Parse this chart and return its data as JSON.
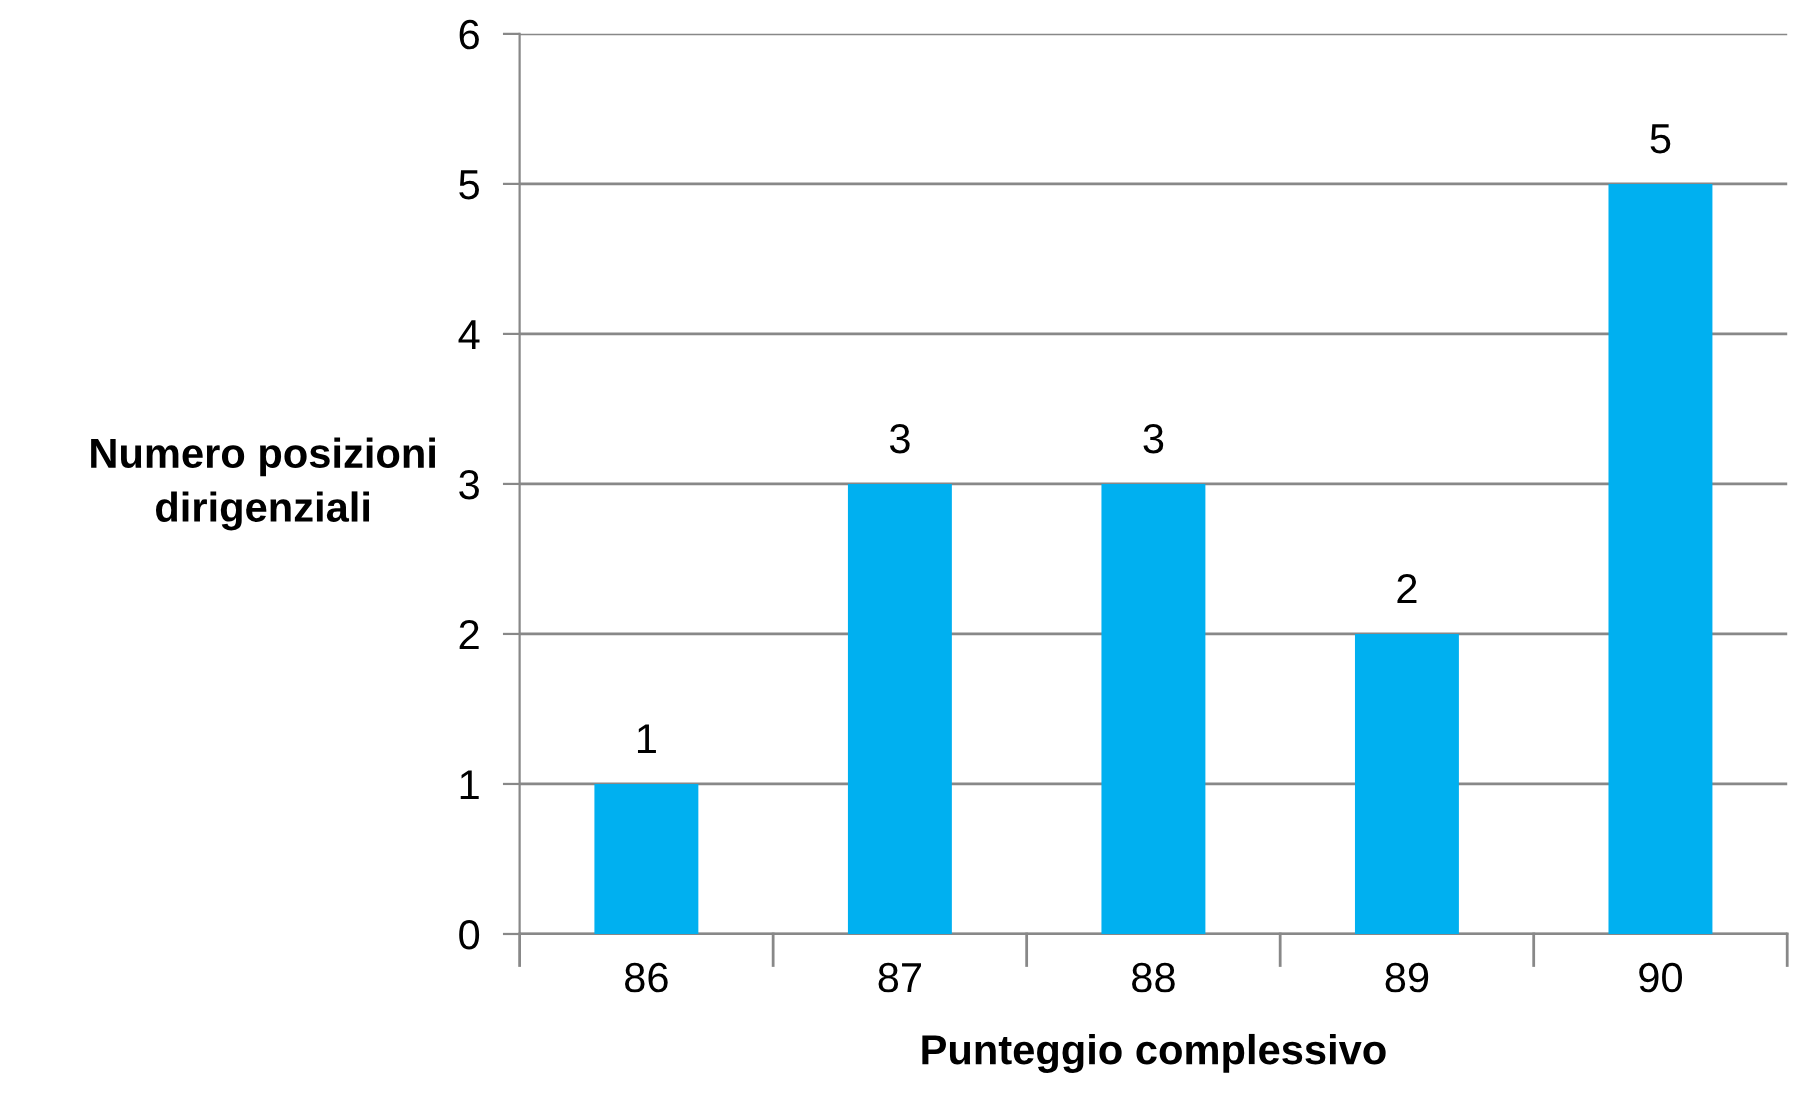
{
  "chart_data": {
    "type": "bar",
    "xlabel": "Punteggio complessivo",
    "ylabel": "Numero posizioni\ndirigenziali",
    "categories": [
      "86",
      "87",
      "88",
      "89",
      "90"
    ],
    "values": [
      1,
      3,
      3,
      2,
      5
    ],
    "color": "#00b0f0",
    "ylim": [
      0,
      6
    ],
    "yticks": [
      0,
      1,
      2,
      3,
      4,
      5,
      6
    ],
    "grid": "y",
    "data_labels": true,
    "legend": false
  }
}
